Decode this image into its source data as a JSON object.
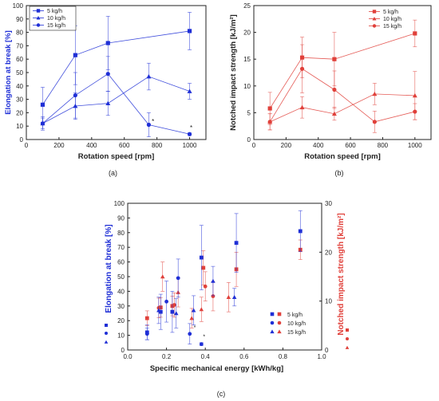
{
  "colors": {
    "blue": "#1f2fd6",
    "red": "#e0403a",
    "axis": "#222222"
  },
  "chart_data": [
    {
      "id": "a",
      "panel_label": "(a)",
      "type": "line",
      "xlabel": "Rotation speed [rpm]",
      "ylabel": "Elongation at break [%]",
      "xlim": [
        0,
        1100
      ],
      "ylim": [
        0,
        100
      ],
      "xticks": [
        0,
        200,
        400,
        600,
        800,
        1000
      ],
      "yticks": [
        0,
        10,
        20,
        30,
        40,
        50,
        60,
        70,
        80,
        90,
        100
      ],
      "grid": false,
      "legend_position": "top-left",
      "series": [
        {
          "name": "5 kg/h",
          "marker": "square",
          "x": [
            100,
            300,
            500,
            1000
          ],
          "values": [
            26,
            63,
            72,
            81
          ],
          "err": [
            13,
            22,
            20,
            14
          ]
        },
        {
          "name": "10 kg/h",
          "marker": "triangle",
          "x": [
            100,
            300,
            500,
            750,
            1000
          ],
          "values": [
            12,
            25,
            27,
            47,
            36
          ],
          "err": [
            5,
            10,
            9,
            10,
            6
          ]
        },
        {
          "name": "15 kg/h",
          "marker": "circle",
          "x": [
            100,
            300,
            500,
            750,
            1000
          ],
          "values": [
            12,
            33,
            49,
            11,
            4
          ],
          "err": [
            4,
            17,
            13,
            9,
            1
          ]
        }
      ],
      "annotations": [
        "*",
        "*"
      ]
    },
    {
      "id": "b",
      "panel_label": "(b)",
      "type": "line",
      "xlabel": "Rotation speed [rpm]",
      "ylabel": "Notched impact strength [kJ/m²]",
      "xlim": [
        0,
        1100
      ],
      "ylim": [
        0,
        25
      ],
      "xticks": [
        0,
        200,
        400,
        600,
        800,
        1000
      ],
      "yticks": [
        0,
        5,
        10,
        15,
        20,
        25
      ],
      "grid": false,
      "legend_position": "top-right",
      "series": [
        {
          "name": "5 kg/h",
          "marker": "square",
          "x": [
            100,
            300,
            500,
            1000
          ],
          "values": [
            5.8,
            15.3,
            15.0,
            19.8
          ],
          "err": [
            3.0,
            3.8,
            5.0,
            2.5
          ]
        },
        {
          "name": "10 kg/h",
          "marker": "triangle",
          "x": [
            100,
            300,
            500,
            750,
            1000
          ],
          "values": [
            3.3,
            6.0,
            4.8,
            8.5,
            8.2
          ],
          "err": [
            1.5,
            2.0,
            1.2,
            2.0,
            4.5
          ]
        },
        {
          "name": "15 kg/h",
          "marker": "circle",
          "x": [
            100,
            300,
            500,
            750,
            1000
          ],
          "values": [
            3.3,
            13.2,
            9.3,
            3.3,
            5.2
          ],
          "err": [
            1.5,
            4.5,
            3.5,
            2.0,
            1.5
          ]
        }
      ]
    },
    {
      "id": "c",
      "panel_label": "(c)",
      "type": "scatter",
      "xlabel": "Specific mechanical energy [kWh/kg]",
      "ylabel": "Elongation at break [%]",
      "y2label": "Notched impact strength [kJ/m²]",
      "xlim": [
        0,
        1.0
      ],
      "ylim": [
        0,
        100
      ],
      "y2lim": [
        0,
        30
      ],
      "xticks": [
        0.0,
        0.2,
        0.4,
        0.6,
        0.8,
        1.0
      ],
      "yticks": [
        0,
        10,
        20,
        30,
        40,
        50,
        60,
        70,
        80,
        90,
        100
      ],
      "y2ticks": [
        0,
        10,
        20,
        30
      ],
      "grid": false,
      "legend_position": "bottom-right",
      "legend_labels": [
        "5 kg/h",
        "10 kg/h",
        "15 kg/h"
      ],
      "elongation_points": [
        {
          "marker": "square",
          "x": 0.1,
          "y": 12,
          "err": 5
        },
        {
          "marker": "square",
          "x": 0.17,
          "y": 26,
          "err": 12
        },
        {
          "marker": "square",
          "x": 0.23,
          "y": 26,
          "err": 14
        },
        {
          "marker": "square",
          "x": 0.38,
          "y": 63,
          "err": 22
        },
        {
          "marker": "square",
          "x": 0.56,
          "y": 73,
          "err": 20
        },
        {
          "marker": "square",
          "x": 0.89,
          "y": 81,
          "err": 14
        },
        {
          "marker": "triangle",
          "x": 0.16,
          "y": 27,
          "err": 9
        },
        {
          "marker": "triangle",
          "x": 0.25,
          "y": 25,
          "err": 10
        },
        {
          "marker": "triangle",
          "x": 0.34,
          "y": 27,
          "err": 10
        },
        {
          "marker": "triangle",
          "x": 0.44,
          "y": 47,
          "err": 10
        },
        {
          "marker": "triangle",
          "x": 0.55,
          "y": 36,
          "err": 6
        },
        {
          "marker": "circle",
          "x": 0.1,
          "y": 11,
          "err": 4
        },
        {
          "marker": "circle",
          "x": 0.2,
          "y": 33,
          "err": 14
        },
        {
          "marker": "circle",
          "x": 0.26,
          "y": 49,
          "err": 13
        },
        {
          "marker": "circle",
          "x": 0.32,
          "y": 11,
          "err": 7
        },
        {
          "marker": "circle",
          "x": 0.38,
          "y": 4,
          "err": 1
        }
      ],
      "impact_points": [
        {
          "marker": "square",
          "x": 0.1,
          "y": 6.5,
          "err": 1.5
        },
        {
          "marker": "square",
          "x": 0.17,
          "y": 8.7,
          "err": 2.0
        },
        {
          "marker": "square",
          "x": 0.23,
          "y": 9.0,
          "err": 2.0
        },
        {
          "marker": "square",
          "x": 0.39,
          "y": 16.8,
          "err": 3.5
        },
        {
          "marker": "square",
          "x": 0.56,
          "y": 16.5,
          "err": 3.5
        },
        {
          "marker": "square",
          "x": 0.89,
          "y": 20.5,
          "err": 2.0
        },
        {
          "marker": "triangle",
          "x": 0.18,
          "y": 15.0,
          "err": 3.0
        },
        {
          "marker": "triangle",
          "x": 0.26,
          "y": 11.8,
          "err": 3.0
        },
        {
          "marker": "triangle",
          "x": 0.33,
          "y": 6.5,
          "err": 2.0
        },
        {
          "marker": "triangle",
          "x": 0.38,
          "y": 8.3,
          "err": 2.5
        },
        {
          "marker": "triangle",
          "x": 0.52,
          "y": 10.8,
          "err": 3.0
        },
        {
          "marker": "circle",
          "x": 0.16,
          "y": 8.6,
          "err": 2.0
        },
        {
          "marker": "circle",
          "x": 0.24,
          "y": 9.2,
          "err": 2.5
        },
        {
          "marker": "circle",
          "x": 0.4,
          "y": 13.0,
          "err": 3.0
        },
        {
          "marker": "circle",
          "x": 0.44,
          "y": 11.0,
          "err": 3.0
        }
      ],
      "annotations": [
        "*",
        "*"
      ]
    }
  ]
}
